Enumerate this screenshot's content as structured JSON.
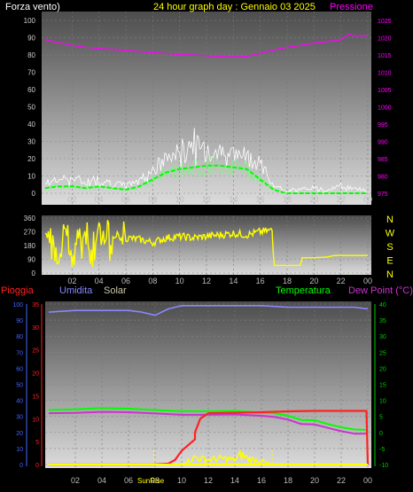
{
  "title": "24 hour graph day : Gennaio 03 2025",
  "colors": {
    "title": "#ffff00",
    "wind": "#ffffff",
    "wind_avg": "#00ff00",
    "pressure": "#ff00ff",
    "direction": "#ffff00",
    "rain": "#ff2222",
    "humidity": "#8888ff",
    "solar": "#ccccaa",
    "temperature": "#00ff00",
    "dewpoint": "#cc33cc",
    "axis_left": "#4466ff",
    "axis_right": "#00cc00",
    "compass": "#ffff00",
    "sun": "#ffff00"
  },
  "x_ticks": [
    "02",
    "04",
    "06",
    "08",
    "10",
    "12",
    "14",
    "16",
    "18",
    "20",
    "22",
    "00"
  ],
  "chart_data": [
    {
      "type": "line",
      "name": "wind_pressure",
      "left_label": "Forza vento)",
      "right_label": "Pressione",
      "left_ticks": [
        "100",
        "90",
        "80",
        "70",
        "60",
        "50",
        "40",
        "30",
        "20",
        "10",
        "0"
      ],
      "right_ticks": [
        "1025",
        "1020",
        "1015",
        "1010",
        "1005",
        "1000",
        "995",
        "990",
        "985",
        "980",
        "975"
      ],
      "left_range": [
        0,
        100
      ],
      "right_range": [
        975,
        1025
      ],
      "x_range": [
        0,
        24
      ],
      "series": [
        {
          "key": "pressure",
          "x": [
            0,
            1,
            2,
            3,
            4,
            5,
            6,
            7,
            8,
            9,
            10,
            11,
            12,
            13,
            14,
            15,
            16,
            17,
            18,
            19,
            20,
            21,
            22,
            22.6,
            23,
            24
          ],
          "values": [
            1019.3,
            1018.6,
            1017.8,
            1017.2,
            1016.9,
            1016.6,
            1016.3,
            1016.0,
            1015.7,
            1015.4,
            1015.1,
            1015.0,
            1014.8,
            1014.6,
            1014.4,
            1014.6,
            1015.5,
            1016.4,
            1017.2,
            1017.8,
            1018.4,
            1018.9,
            1019.4,
            1021.0,
            1020.5,
            1020.6
          ]
        },
        {
          "key": "wind_gust",
          "x": [
            0,
            1,
            2,
            3,
            4,
            5,
            6,
            7,
            8,
            9,
            10,
            10.5,
            11,
            11.5,
            12,
            13,
            14,
            15,
            16,
            16.5,
            17,
            18,
            19,
            20,
            21,
            22,
            23,
            24
          ],
          "values": [
            8,
            10,
            12,
            9,
            11,
            8,
            6,
            10,
            18,
            25,
            30,
            35,
            40,
            32,
            33,
            30,
            28,
            27,
            24,
            14,
            5,
            3,
            3,
            5,
            4,
            6,
            4,
            3
          ]
        },
        {
          "key": "wind_avg",
          "x": [
            0,
            1,
            2,
            3,
            4,
            5,
            6,
            7,
            8,
            9,
            10,
            11,
            12,
            13,
            14,
            15,
            16,
            17,
            18,
            24
          ],
          "values": [
            3,
            4,
            4,
            3,
            4,
            3,
            2,
            4,
            8,
            12,
            14,
            15,
            16,
            16,
            15,
            14,
            8,
            2,
            0,
            0
          ]
        }
      ]
    },
    {
      "type": "line",
      "name": "wind_direction",
      "left_ticks": [
        "360",
        "270",
        "180",
        "90",
        "0"
      ],
      "left_range": [
        0,
        360
      ],
      "compass": [
        "N",
        "W",
        "S",
        "E",
        "N"
      ],
      "series": [
        {
          "key": "direction",
          "x": [
            0,
            0.5,
            1,
            1.5,
            2,
            2.5,
            3,
            3.5,
            4,
            4.5,
            5,
            5.5,
            6,
            7,
            8,
            9,
            10,
            11,
            12,
            13,
            14,
            15,
            16,
            16.9,
            17,
            18,
            19,
            19.1,
            20,
            21,
            21.5,
            22,
            23,
            24
          ],
          "values": [
            250,
            300,
            20,
            310,
            80,
            290,
            240,
            20,
            300,
            210,
            280,
            220,
            230,
            220,
            200,
            230,
            240,
            230,
            240,
            250,
            260,
            250,
            270,
            280,
            50,
            50,
            50,
            100,
            100,
            105,
            115,
            115,
            115,
            115
          ]
        }
      ]
    },
    {
      "type": "line",
      "name": "rain_humidity_temperature",
      "labels": {
        "rain": "Pioggia",
        "humidity": "Umidita",
        "solar": "Solar",
        "temperature": "Temperatura",
        "dewpoint": "Dew Point (°C)"
      },
      "left_ticks": [
        "100",
        "90",
        "80",
        "70",
        "60",
        "50",
        "40",
        "30",
        "20",
        "10",
        "0"
      ],
      "rain_ticks": [
        "35",
        "30",
        "25",
        "20",
        "15",
        "10",
        "5",
        "0"
      ],
      "right_ticks": [
        "40",
        "35",
        "30",
        "25",
        "20",
        "15",
        "10",
        "5",
        "0",
        "-5",
        "-10"
      ],
      "left_range": [
        0,
        100
      ],
      "right_range": [
        -10,
        40
      ],
      "rain_range": [
        0,
        35
      ],
      "sunrise_label": "SunRise",
      "sunset_label": "",
      "sunrise_x": 7.9,
      "sunset_x": 16.8,
      "series": [
        {
          "key": "humidity",
          "x": [
            0,
            2,
            4,
            6,
            7,
            8,
            9,
            10,
            12,
            14,
            16,
            18,
            20,
            22,
            23,
            24
          ],
          "values": [
            95,
            96,
            96,
            96,
            95,
            93,
            97,
            99,
            99,
            99,
            99,
            98,
            98,
            98,
            98,
            97
          ]
        },
        {
          "key": "temperature",
          "x": [
            0,
            2,
            4,
            6,
            8,
            10,
            12,
            14,
            16,
            17,
            18,
            19,
            20,
            21,
            22,
            23,
            24
          ],
          "values": [
            7,
            7.2,
            7.6,
            7.4,
            7.0,
            6.6,
            6.6,
            6.7,
            6.2,
            6.0,
            5.2,
            3.9,
            3.8,
            2.6,
            1.6,
            0.9,
            0.8
          ]
        },
        {
          "key": "dewpoint",
          "x": [
            0,
            2,
            4,
            6,
            8,
            10,
            12,
            14,
            16,
            17,
            18,
            19,
            20,
            21,
            22,
            23,
            24
          ],
          "values": [
            6,
            6.1,
            6.4,
            6.3,
            5.9,
            5.5,
            5.5,
            5.6,
            5.2,
            4.8,
            4.0,
            2.6,
            2.5,
            1.4,
            0.4,
            -0.4,
            -0.4
          ]
        },
        {
          "key": "rain",
          "x": [
            0,
            7.8,
            9.0,
            9.5,
            10.0,
            11.0,
            11.0,
            11.4,
            12.0,
            14.0,
            16.0,
            18.0,
            20.0,
            22.0,
            23.9,
            24
          ],
          "values": [
            0,
            0,
            0.2,
            1,
            3,
            5.5,
            7,
            10,
            11.2,
            11.3,
            11.4,
            11.6,
            11.7,
            11.7,
            11.7,
            0
          ]
        },
        {
          "key": "solar",
          "x": [
            0,
            10,
            10.5,
            11,
            12,
            13,
            14,
            14.5,
            15,
            16,
            16.8,
            24
          ],
          "values": [
            0,
            0,
            3,
            6,
            4,
            5,
            4,
            8,
            5,
            3,
            0,
            0
          ]
        }
      ]
    }
  ]
}
